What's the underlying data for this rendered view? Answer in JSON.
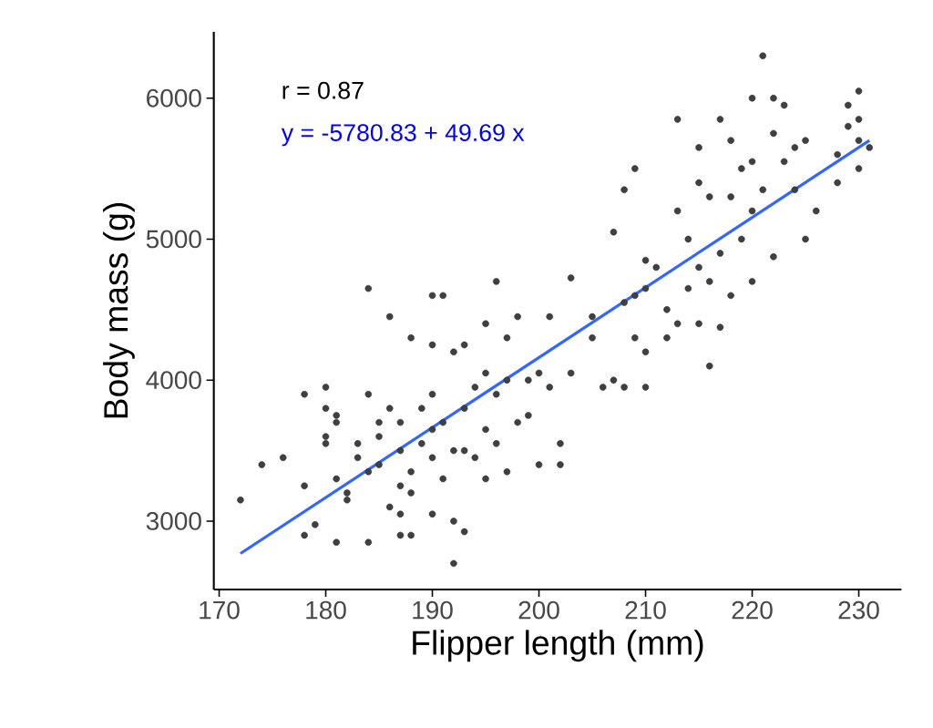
{
  "chart_data": {
    "type": "scatter",
    "xlabel": "Flipper length (mm)",
    "ylabel": "Body mass (g)",
    "annotations": [
      "r =  0.87",
      "y =  -5780.83  +  49.69 x"
    ],
    "xlim": [
      169.5,
      234
    ],
    "ylim": [
      2515,
      6470
    ],
    "xticks": [
      170,
      180,
      190,
      200,
      210,
      220,
      230
    ],
    "yticks": [
      3000,
      4000,
      5000,
      6000
    ],
    "grid": false,
    "series": [
      {
        "marker": "circle",
        "color": "#404040",
        "x": [
          172,
          174,
          176,
          178,
          178,
          178,
          179,
          180,
          180,
          180,
          180,
          181,
          181,
          181,
          181,
          182,
          182,
          183,
          183,
          184,
          184,
          184,
          184,
          185,
          185,
          185,
          186,
          186,
          186,
          187,
          187,
          187,
          187,
          187,
          188,
          188,
          188,
          188,
          189,
          189,
          190,
          190,
          190,
          190,
          190,
          190,
          191,
          191,
          191,
          192,
          192,
          192,
          192,
          193,
          193,
          193,
          193,
          194,
          194,
          195,
          195,
          195,
          195,
          196,
          196,
          196,
          197,
          197,
          197,
          198,
          198,
          199,
          199,
          200,
          200,
          201,
          201,
          202,
          202,
          203,
          203,
          205,
          205,
          206,
          207,
          207,
          208,
          208,
          208,
          209,
          209,
          209,
          210,
          210,
          210,
          210,
          211,
          212,
          212,
          213,
          213,
          213,
          214,
          214,
          215,
          215,
          215,
          215,
          216,
          216,
          216,
          217,
          217,
          217,
          218,
          218,
          218,
          219,
          219,
          220,
          220,
          220,
          220,
          221,
          221,
          222,
          222,
          222,
          223,
          223,
          224,
          224,
          225,
          225,
          226,
          228,
          228,
          229,
          229,
          230,
          230,
          230,
          230,
          231
        ],
        "values": [
          3150,
          3400,
          3450,
          3250,
          3900,
          2900,
          2975,
          3950,
          3550,
          3600,
          3800,
          3700,
          3750,
          2850,
          3300,
          3200,
          3150,
          3450,
          3550,
          4650,
          3900,
          2850,
          3350,
          3700,
          3600,
          3400,
          3800,
          3100,
          4450,
          3700,
          3250,
          3050,
          2900,
          3500,
          4300,
          3350,
          3200,
          2900,
          3800,
          3550,
          4250,
          3450,
          3900,
          3650,
          3050,
          4600,
          3300,
          4600,
          3700,
          3500,
          4200,
          3000,
          2700,
          3800,
          4250,
          3500,
          2925,
          3950,
          3450,
          4400,
          3650,
          3300,
          4050,
          4700,
          3900,
          3550,
          4300,
          4000,
          3350,
          3700,
          4450,
          3750,
          4000,
          4050,
          3400,
          4450,
          3950,
          3550,
          3400,
          4725,
          4050,
          4450,
          4300,
          3950,
          5050,
          4000,
          5350,
          4550,
          3950,
          5500,
          4600,
          4300,
          4850,
          4650,
          4200,
          3950,
          4800,
          4500,
          4300,
          5850,
          5200,
          4400,
          4650,
          5000,
          5400,
          5650,
          4800,
          4400,
          5300,
          4100,
          4700,
          5850,
          4900,
          4375,
          5700,
          5300,
          4600,
          5000,
          5500,
          6000,
          5550,
          5200,
          4700,
          6300,
          5350,
          6000,
          5750,
          4875,
          5950,
          5550,
          5650,
          5350,
          5700,
          5000,
          5200,
          5400,
          5600,
          5800,
          5950,
          6050,
          5500,
          5700,
          5850,
          5650
        ]
      },
      {
        "type": "line",
        "marker": "none",
        "color": "#3366ff",
        "x": [
          172,
          231
        ],
        "values": [
          2770,
          5700
        ]
      }
    ]
  }
}
